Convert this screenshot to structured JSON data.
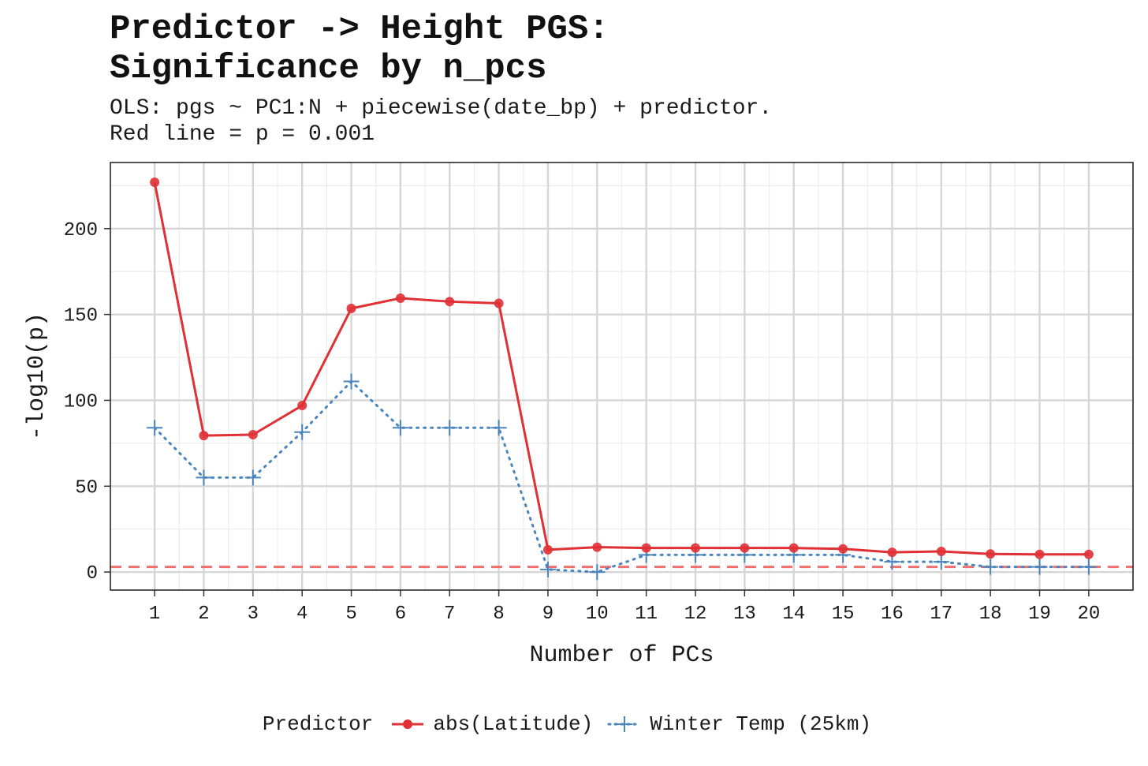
{
  "title_lines": [
    "Predictor -> Height PGS:",
    "Significance by n_pcs"
  ],
  "subtitle_lines": [
    "OLS: pgs ~ PC1:N + piecewise(date_bp) + predictor.",
    "Red line = p = 0.001"
  ],
  "colors": {
    "abs_latitude": "#e03035",
    "winter_temp": "#4a86bd",
    "threshold": "#f07070",
    "grid_major": "#d6d6d6",
    "grid_minor": "#ececec"
  },
  "chart_data": {
    "type": "line",
    "title": "Predictor -> Height PGS: Significance by n_pcs",
    "xlabel": "Number of PCs",
    "ylabel": "-log10(p)",
    "x": [
      1,
      2,
      3,
      4,
      5,
      6,
      7,
      8,
      9,
      10,
      11,
      12,
      13,
      14,
      15,
      16,
      17,
      18,
      19,
      20
    ],
    "x_tick_labels": [
      "1",
      "2",
      "3",
      "4",
      "5",
      "6",
      "7",
      "8",
      "9",
      "10",
      "11",
      "12",
      "13",
      "14",
      "15",
      "16",
      "17",
      "18",
      "19",
      "20"
    ],
    "y_ticks": [
      0,
      50,
      100,
      150,
      200
    ],
    "y_tick_labels": [
      "0",
      "50",
      "100",
      "150",
      "200"
    ],
    "xlim": [
      0.1,
      20.9
    ],
    "ylim": [
      -10.5,
      238.5
    ],
    "threshold": 3,
    "grid": true,
    "legend_title": "Predictor",
    "legend_position": "bottom",
    "series": [
      {
        "name": "abs(Latitude)",
        "marker": "circle",
        "linestyle": "solid",
        "values": [
          227,
          79.5,
          80,
          97,
          153.5,
          159.5,
          157.5,
          156.5,
          13,
          14.5,
          14,
          14,
          14,
          14,
          13.5,
          11.5,
          12,
          10.5,
          10.3,
          10.3
        ]
      },
      {
        "name": "Winter Temp (25km)",
        "marker": "plus",
        "linestyle": "dotted",
        "values": [
          84,
          55,
          55,
          81.5,
          111,
          84,
          84,
          84,
          1.5,
          0,
          10,
          10,
          10,
          10,
          10,
          6,
          6,
          3,
          3,
          3
        ]
      }
    ]
  }
}
